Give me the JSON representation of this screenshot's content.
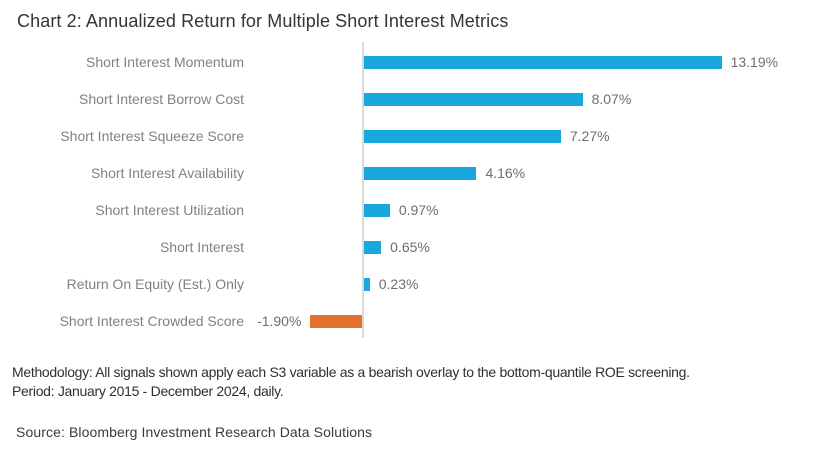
{
  "title": "Chart 2: Annualized Return for Multiple Short Interest Metrics",
  "chart_data": {
    "type": "bar",
    "orientation": "horizontal",
    "title": "Chart 2: Annualized Return for Multiple Short Interest Metrics",
    "categories": [
      "Short Interest Momentum",
      "Short Interest Borrow Cost",
      "Short Interest Squeeze Score",
      "Short Interest Availability",
      "Short Interest Utilization",
      "Short Interest",
      "Return On Equity (Est.) Only",
      "Short Interest Crowded Score"
    ],
    "values": [
      13.19,
      8.07,
      7.27,
      4.16,
      0.97,
      0.65,
      0.23,
      -1.9
    ],
    "value_labels": [
      "13.19%",
      "8.07%",
      "7.27%",
      "4.16%",
      "0.97%",
      "0.65%",
      "0.23%",
      "-1.90%"
    ],
    "xlabel": "",
    "ylabel": "",
    "xlim": [
      -4.2,
      16.7
    ],
    "grid": false,
    "legend": false,
    "data_labels": "outside-end",
    "colors": {
      "positive_bar": "#18a8dd",
      "negative_bar": "#e2732d",
      "axis_line": "#d9d9d9",
      "category_text": "#818181",
      "value_text": "#6e6e6e"
    }
  },
  "footer": {
    "methodology_line1": "Methodology: All signals shown apply each S3 variable as a bearish overlay to the bottom-quantile ROE screening.",
    "methodology_line2": "Period: January 2015 - December 2024, daily.",
    "source": "Source: Bloomberg Investment Research Data Solutions"
  }
}
